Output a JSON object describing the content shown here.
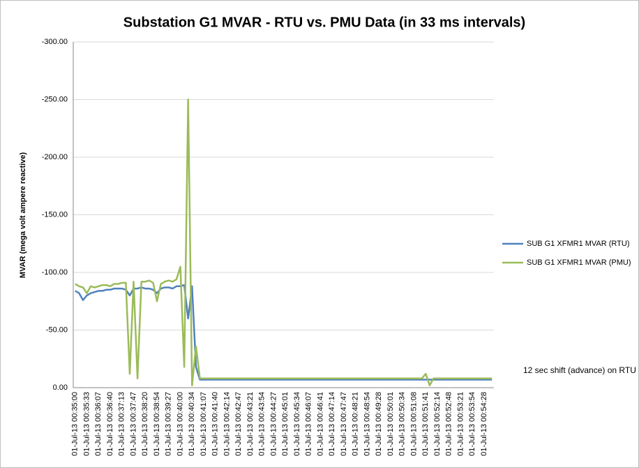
{
  "chart_data": {
    "type": "line",
    "title": "Substation G1 MVAR - RTU vs. PMU Data (in 33 ms intervals)",
    "y_label": "MVAR (mega volt ampere reactive)",
    "annotation": "12 sec shift (advance) on RTU",
    "categories": [
      "01-Jul-13 00:35:00",
      null,
      null,
      "01-Jul-13 00:35:33",
      null,
      null,
      "01-Jul-13 00:36:07",
      null,
      null,
      "01-Jul-13 00:36:40",
      null,
      null,
      "01-Jul-13 00:37:13",
      null,
      null,
      "01-Jul-13 00:37:47",
      null,
      null,
      "01-Jul-13 00:38:20",
      null,
      null,
      "01-Jul-13 00:38:54",
      null,
      null,
      "01-Jul-13 00:39:27",
      null,
      null,
      "01-Jul-13 00:40:00",
      null,
      null,
      "01-Jul-13 00:40:34",
      null,
      null,
      "01-Jul-13 00:41:07",
      null,
      null,
      "01-Jul-13 00:41:40",
      null,
      null,
      "01-Jul-13 00:42:14",
      null,
      null,
      "01-Jul-13 00:42:47",
      null,
      null,
      "01-Jul-13 00:43:21",
      null,
      null,
      "01-Jul-13 00:43:54",
      null,
      null,
      "01-Jul-13 00:44:27",
      null,
      null,
      "01-Jul-13 00:45:01",
      null,
      null,
      "01-Jul-13 00:45:34",
      null,
      null,
      "01-Jul-13 00:46:07",
      null,
      null,
      "01-Jul-13 00:46:41",
      null,
      null,
      "01-Jul-13 00:47:14",
      null,
      null,
      "01-Jul-13 00:47:47",
      null,
      null,
      "01-Jul-13 00:48:21",
      null,
      null,
      "01-Jul-13 00:48:54",
      null,
      null,
      "01-Jul-13 00:49:28",
      null,
      null,
      "01-Jul-13 00:50:01",
      null,
      null,
      "01-Jul-13 00:50:34",
      null,
      null,
      "01-Jul-13 00:51:08",
      null,
      null,
      "01-Jul-13 00:51:41",
      null,
      null,
      "01-Jul-13 00:52:14",
      null,
      null,
      "01-Jul-13 00:52:48",
      null,
      null,
      "01-Jul-13 00:53:21",
      null,
      null,
      "01-Jul-13 00:53:54",
      null,
      null,
      "01-Jul-13 00:54:28",
      null,
      null
    ],
    "series": [
      {
        "name": "SUB G1 XFMR1 MVAR (RTU)",
        "color": "#4f81bd",
        "values": [
          -84,
          -82,
          -76,
          -80,
          -82,
          -83,
          -84,
          -84,
          -85,
          -85,
          -86,
          -86,
          -86,
          -85,
          -80,
          -86,
          -86,
          -87,
          -86,
          -86,
          -85,
          -82,
          -86,
          -87,
          -87,
          -86,
          -88,
          -88,
          -89,
          -60,
          -88,
          -18,
          -7,
          -7,
          -7,
          -7,
          -7,
          -7,
          -7,
          -7,
          -7,
          -7,
          -7,
          -7,
          -7,
          -7,
          -7,
          -7,
          -7,
          -7,
          -7,
          -7,
          -7,
          -7,
          -7,
          -7,
          -7,
          -7,
          -7,
          -7,
          -7,
          -7,
          -7,
          -7,
          -7,
          -7,
          -7,
          -7,
          -7,
          -7,
          -7,
          -7,
          -7,
          -7,
          -7,
          -7,
          -7,
          -7,
          -7,
          -7,
          -7,
          -7,
          -7,
          -7,
          -7,
          -7,
          -7,
          -7,
          -7,
          -7,
          -7,
          -7,
          -7,
          -7,
          -7,
          -7,
          -7,
          -7,
          -7,
          -7,
          -7,
          -7,
          -7,
          -7,
          -7,
          -7,
          -7,
          -7
        ]
      },
      {
        "name": "SUB G1 XFMR1 MVAR (PMU)",
        "color": "#9bbb59",
        "values": [
          -90,
          -88,
          -87,
          -82,
          -88,
          -87,
          -88,
          -89,
          -89,
          -88,
          -90,
          -90,
          -91,
          -91,
          -12,
          -92,
          -8,
          -92,
          -92,
          -93,
          -91,
          -75,
          -90,
          -92,
          -93,
          -92,
          -94,
          -105,
          -18,
          -250,
          -2,
          -36,
          -8,
          -8,
          -8,
          -8,
          -8,
          -8,
          -8,
          -8,
          -8,
          -8,
          -8,
          -8,
          -8,
          -8,
          -8,
          -8,
          -8,
          -8,
          -8,
          -8,
          -8,
          -8,
          -8,
          -8,
          -8,
          -8,
          -8,
          -8,
          -8,
          -8,
          -8,
          -8,
          -8,
          -8,
          -8,
          -8,
          -8,
          -8,
          -8,
          -8,
          -8,
          -8,
          -8,
          -8,
          -8,
          -8,
          -8,
          -8,
          -8,
          -8,
          -8,
          -8,
          -8,
          -8,
          -8,
          -8,
          -8,
          -8,
          -12,
          -2,
          -8,
          -8,
          -8,
          -8,
          -8,
          -8,
          -8,
          -8,
          -8,
          -8,
          -8,
          -8,
          -8,
          -8,
          -8,
          -8
        ]
      }
    ],
    "ylim": [
      0,
      -300
    ],
    "yticks": [
      {
        "value": 0,
        "label": "0.00"
      },
      {
        "value": -50,
        "label": "-50.00"
      },
      {
        "value": -100,
        "label": "-100.00"
      },
      {
        "value": -150,
        "label": "-150.00"
      },
      {
        "value": -200,
        "label": "-200.00"
      },
      {
        "value": -250,
        "label": "-250.00"
      },
      {
        "value": -300,
        "label": "-300.00"
      }
    ],
    "grid": true,
    "legend": "right"
  }
}
